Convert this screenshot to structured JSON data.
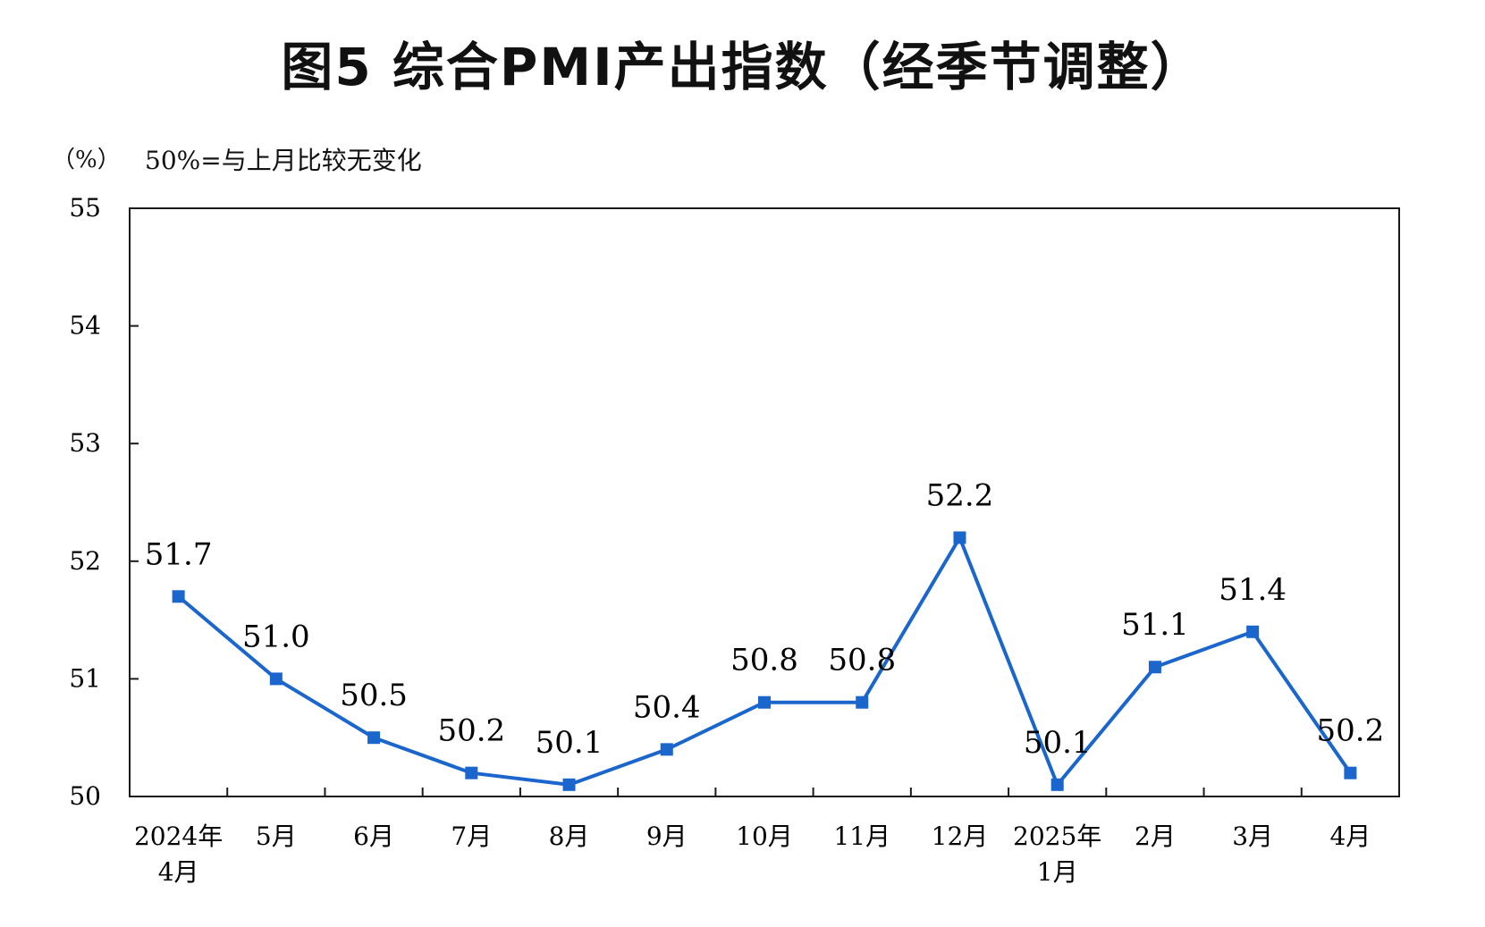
{
  "chart_data": {
    "type": "line",
    "title": "图5  综合PMI产出指数（经季节调整）",
    "y_unit": "（%）",
    "note": "50%=与上月比较无变化",
    "ylim": [
      50,
      55
    ],
    "yticks": [
      "50",
      "51",
      "52",
      "53",
      "54",
      "55"
    ],
    "categories": [
      [
        "2024年",
        "4月"
      ],
      [
        "5月"
      ],
      [
        "6月"
      ],
      [
        "7月"
      ],
      [
        "8月"
      ],
      [
        "9月"
      ],
      [
        "10月"
      ],
      [
        "11月"
      ],
      [
        "12月"
      ],
      [
        "2025年",
        "1月"
      ],
      [
        "2月"
      ],
      [
        "3月"
      ],
      [
        "4月"
      ]
    ],
    "series": [
      {
        "values": [
          51.7,
          51.0,
          50.5,
          50.2,
          50.1,
          50.4,
          50.8,
          50.8,
          52.2,
          50.1,
          51.1,
          51.4,
          50.2
        ],
        "labels": [
          "51.7",
          "51.0",
          "50.5",
          "50.2",
          "50.1",
          "50.4",
          "50.8",
          "50.8",
          "52.2",
          "50.1",
          "51.1",
          "51.4",
          "50.2"
        ]
      }
    ],
    "grid": false,
    "legend": "none",
    "line_color": "#1a66cc",
    "marker": "square"
  }
}
